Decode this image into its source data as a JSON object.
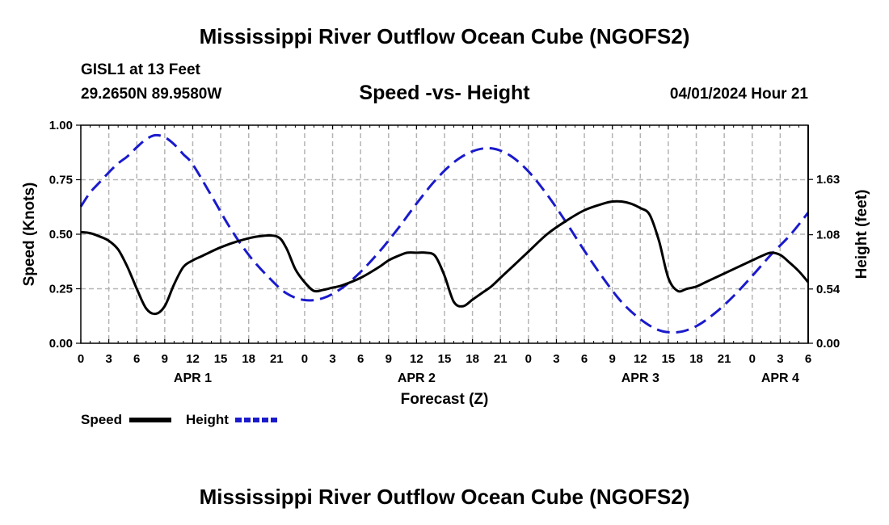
{
  "page": {
    "title": "Mississippi River Outflow Ocean Cube (NGOFS2)",
    "station": "GISL1 at 13 Feet",
    "coords": "29.2650N  89.9580W",
    "datetime": "04/01/2024 Hour 21",
    "footer_title": "Mississippi River Outflow Ocean Cube (NGOFS2)"
  },
  "legend": {
    "speed_label": "Speed",
    "height_label": "Height"
  },
  "colors": {
    "speed": "#000000",
    "height": "#1a1acc",
    "grid": "#b4b4b4"
  },
  "chart_data": {
    "type": "line",
    "title": "Speed -vs- Height",
    "xlabel": "Forecast (Z)",
    "ylabel": "Speed (Knots)",
    "y2label": "Height (feet)",
    "xlim": [
      0,
      78
    ],
    "ylim": [
      0,
      1
    ],
    "y2lim": [
      0,
      2.17
    ],
    "x_ticks": [
      0,
      3,
      6,
      9,
      12,
      15,
      18,
      21,
      24,
      27,
      30,
      33,
      36,
      39,
      42,
      45,
      48,
      51,
      54,
      57,
      60,
      63,
      66,
      69,
      72,
      75,
      78
    ],
    "x_tick_labels": [
      "0",
      "3",
      "6",
      "9",
      "12",
      "15",
      "18",
      "21",
      "0",
      "3",
      "6",
      "9",
      "12",
      "15",
      "18",
      "21",
      "0",
      "3",
      "6",
      "9",
      "12",
      "15",
      "18",
      "21",
      "0",
      "3",
      "6"
    ],
    "day_labels": [
      {
        "label": "APR 1",
        "hour": 12
      },
      {
        "label": "APR 2",
        "hour": 36
      },
      {
        "label": "APR 3",
        "hour": 60
      },
      {
        "label": "APR 4",
        "hour": 75
      }
    ],
    "y_ticks": [
      0,
      0.25,
      0.5,
      0.75,
      1.0
    ],
    "y_tick_labels": [
      "0.00",
      "0.25",
      "0.50",
      "0.75",
      "1.00"
    ],
    "y2_ticks": [
      0,
      0.54,
      1.08,
      1.63
    ],
    "y2_tick_labels": [
      "0.00",
      "0.54",
      "1.08",
      "1.63"
    ],
    "series": [
      {
        "name": "Speed",
        "axis": "left",
        "style": "solid",
        "x": [
          0,
          1,
          2,
          3,
          4,
          5,
          6,
          7,
          8,
          9,
          10,
          11,
          12,
          13,
          15,
          17,
          19,
          21,
          22,
          23,
          24,
          25,
          26,
          27,
          28,
          30,
          32,
          33,
          34,
          35,
          36,
          37,
          38,
          39,
          40,
          41,
          42,
          43,
          44,
          45,
          46,
          48,
          50,
          52,
          54,
          56,
          57,
          58,
          59,
          60,
          61,
          62,
          63,
          64,
          65,
          66,
          67,
          68,
          70,
          72,
          73,
          74,
          75,
          76,
          77,
          78
        ],
        "values": [
          0.51,
          0.505,
          0.49,
          0.47,
          0.43,
          0.35,
          0.25,
          0.16,
          0.135,
          0.17,
          0.27,
          0.35,
          0.38,
          0.4,
          0.44,
          0.47,
          0.49,
          0.49,
          0.44,
          0.34,
          0.28,
          0.24,
          0.245,
          0.255,
          0.265,
          0.3,
          0.35,
          0.38,
          0.4,
          0.415,
          0.415,
          0.415,
          0.4,
          0.31,
          0.19,
          0.17,
          0.2,
          0.23,
          0.26,
          0.3,
          0.34,
          0.42,
          0.5,
          0.56,
          0.61,
          0.64,
          0.65,
          0.65,
          0.64,
          0.62,
          0.59,
          0.47,
          0.3,
          0.24,
          0.25,
          0.26,
          0.28,
          0.3,
          0.34,
          0.38,
          0.4,
          0.415,
          0.405,
          0.37,
          0.33,
          0.28
        ]
      },
      {
        "name": "Height",
        "axis": "right",
        "style": "dashed",
        "x": [
          0,
          1,
          2,
          3,
          4,
          5,
          6,
          7,
          8,
          9,
          10,
          11,
          12,
          14,
          16,
          18,
          20,
          22,
          24,
          26,
          28,
          30,
          32,
          34,
          36,
          38,
          40,
          42,
          44,
          46,
          48,
          50,
          52,
          54,
          56,
          58,
          60,
          62,
          64,
          66,
          68,
          70,
          72,
          74,
          76,
          78
        ],
        "values": [
          1.36,
          1.5,
          1.6,
          1.7,
          1.79,
          1.86,
          1.95,
          2.03,
          2.07,
          2.05,
          1.98,
          1.88,
          1.78,
          1.47,
          1.15,
          0.88,
          0.67,
          0.5,
          0.43,
          0.45,
          0.55,
          0.71,
          0.91,
          1.14,
          1.39,
          1.62,
          1.8,
          1.91,
          1.94,
          1.87,
          1.71,
          1.48,
          1.21,
          0.92,
          0.65,
          0.41,
          0.24,
          0.13,
          0.11,
          0.17,
          0.3,
          0.47,
          0.67,
          0.88,
          1.07,
          1.3
        ]
      }
    ]
  }
}
